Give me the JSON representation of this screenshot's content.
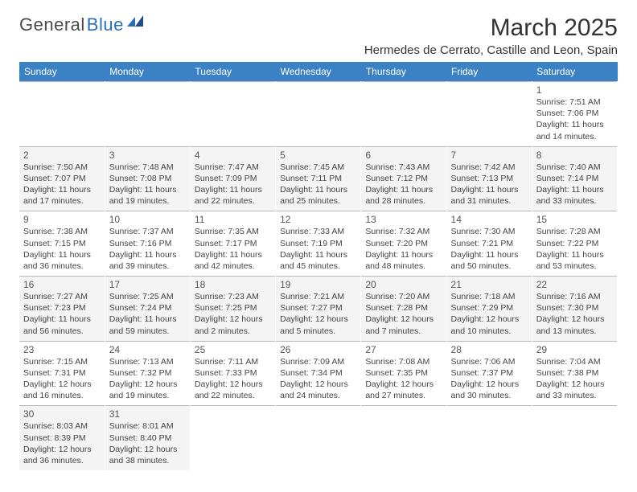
{
  "logo": {
    "part1": "General",
    "part2": "Blue"
  },
  "title": "March 2025",
  "location": "Hermedes de Cerrato, Castille and Leon, Spain",
  "colors": {
    "header_bg": "#3b82c4",
    "header_text": "#ffffff",
    "logo_gray": "#4a4a4a",
    "logo_blue": "#2a6db8",
    "border": "#b8b8b8",
    "alt_row": "#f4f4f4"
  },
  "weekdays": [
    "Sunday",
    "Monday",
    "Tuesday",
    "Wednesday",
    "Thursday",
    "Friday",
    "Saturday"
  ],
  "weeks": [
    [
      null,
      null,
      null,
      null,
      null,
      null,
      {
        "n": "1",
        "sunrise": "7:51 AM",
        "sunset": "7:06 PM",
        "daylight": "11 hours and 14 minutes."
      }
    ],
    [
      {
        "n": "2",
        "sunrise": "7:50 AM",
        "sunset": "7:07 PM",
        "daylight": "11 hours and 17 minutes."
      },
      {
        "n": "3",
        "sunrise": "7:48 AM",
        "sunset": "7:08 PM",
        "daylight": "11 hours and 19 minutes."
      },
      {
        "n": "4",
        "sunrise": "7:47 AM",
        "sunset": "7:09 PM",
        "daylight": "11 hours and 22 minutes."
      },
      {
        "n": "5",
        "sunrise": "7:45 AM",
        "sunset": "7:11 PM",
        "daylight": "11 hours and 25 minutes."
      },
      {
        "n": "6",
        "sunrise": "7:43 AM",
        "sunset": "7:12 PM",
        "daylight": "11 hours and 28 minutes."
      },
      {
        "n": "7",
        "sunrise": "7:42 AM",
        "sunset": "7:13 PM",
        "daylight": "11 hours and 31 minutes."
      },
      {
        "n": "8",
        "sunrise": "7:40 AM",
        "sunset": "7:14 PM",
        "daylight": "11 hours and 33 minutes."
      }
    ],
    [
      {
        "n": "9",
        "sunrise": "7:38 AM",
        "sunset": "7:15 PM",
        "daylight": "11 hours and 36 minutes."
      },
      {
        "n": "10",
        "sunrise": "7:37 AM",
        "sunset": "7:16 PM",
        "daylight": "11 hours and 39 minutes."
      },
      {
        "n": "11",
        "sunrise": "7:35 AM",
        "sunset": "7:17 PM",
        "daylight": "11 hours and 42 minutes."
      },
      {
        "n": "12",
        "sunrise": "7:33 AM",
        "sunset": "7:19 PM",
        "daylight": "11 hours and 45 minutes."
      },
      {
        "n": "13",
        "sunrise": "7:32 AM",
        "sunset": "7:20 PM",
        "daylight": "11 hours and 48 minutes."
      },
      {
        "n": "14",
        "sunrise": "7:30 AM",
        "sunset": "7:21 PM",
        "daylight": "11 hours and 50 minutes."
      },
      {
        "n": "15",
        "sunrise": "7:28 AM",
        "sunset": "7:22 PM",
        "daylight": "11 hours and 53 minutes."
      }
    ],
    [
      {
        "n": "16",
        "sunrise": "7:27 AM",
        "sunset": "7:23 PM",
        "daylight": "11 hours and 56 minutes."
      },
      {
        "n": "17",
        "sunrise": "7:25 AM",
        "sunset": "7:24 PM",
        "daylight": "11 hours and 59 minutes."
      },
      {
        "n": "18",
        "sunrise": "7:23 AM",
        "sunset": "7:25 PM",
        "daylight": "12 hours and 2 minutes."
      },
      {
        "n": "19",
        "sunrise": "7:21 AM",
        "sunset": "7:27 PM",
        "daylight": "12 hours and 5 minutes."
      },
      {
        "n": "20",
        "sunrise": "7:20 AM",
        "sunset": "7:28 PM",
        "daylight": "12 hours and 7 minutes."
      },
      {
        "n": "21",
        "sunrise": "7:18 AM",
        "sunset": "7:29 PM",
        "daylight": "12 hours and 10 minutes."
      },
      {
        "n": "22",
        "sunrise": "7:16 AM",
        "sunset": "7:30 PM",
        "daylight": "12 hours and 13 minutes."
      }
    ],
    [
      {
        "n": "23",
        "sunrise": "7:15 AM",
        "sunset": "7:31 PM",
        "daylight": "12 hours and 16 minutes."
      },
      {
        "n": "24",
        "sunrise": "7:13 AM",
        "sunset": "7:32 PM",
        "daylight": "12 hours and 19 minutes."
      },
      {
        "n": "25",
        "sunrise": "7:11 AM",
        "sunset": "7:33 PM",
        "daylight": "12 hours and 22 minutes."
      },
      {
        "n": "26",
        "sunrise": "7:09 AM",
        "sunset": "7:34 PM",
        "daylight": "12 hours and 24 minutes."
      },
      {
        "n": "27",
        "sunrise": "7:08 AM",
        "sunset": "7:35 PM",
        "daylight": "12 hours and 27 minutes."
      },
      {
        "n": "28",
        "sunrise": "7:06 AM",
        "sunset": "7:37 PM",
        "daylight": "12 hours and 30 minutes."
      },
      {
        "n": "29",
        "sunrise": "7:04 AM",
        "sunset": "7:38 PM",
        "daylight": "12 hours and 33 minutes."
      }
    ],
    [
      {
        "n": "30",
        "sunrise": "8:03 AM",
        "sunset": "8:39 PM",
        "daylight": "12 hours and 36 minutes."
      },
      {
        "n": "31",
        "sunrise": "8:01 AM",
        "sunset": "8:40 PM",
        "daylight": "12 hours and 38 minutes."
      },
      null,
      null,
      null,
      null,
      null
    ]
  ],
  "labels": {
    "sunrise": "Sunrise:",
    "sunset": "Sunset:",
    "daylight": "Daylight:"
  }
}
